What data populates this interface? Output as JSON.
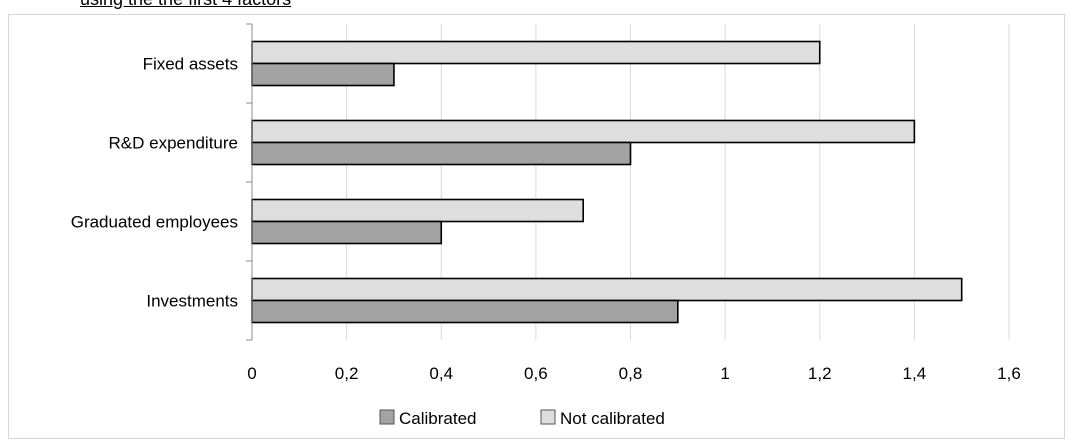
{
  "caption": {
    "text": "using the the first 4 factors"
  },
  "chart_data": {
    "type": "bar",
    "orientation": "horizontal",
    "categories": [
      "Fixed assets",
      "R&D expenditure",
      "Graduated employees",
      "Investments"
    ],
    "series": [
      {
        "name": "Calibrated",
        "values": [
          0.3,
          0.8,
          0.4,
          0.9
        ],
        "color": "#a3a3a3"
      },
      {
        "name": "Not calibrated",
        "values": [
          1.2,
          1.4,
          0.7,
          1.5
        ],
        "color": "#dedede"
      }
    ],
    "xticks": [
      "0",
      "0,2",
      "0,4",
      "0,6",
      "0,8",
      "1",
      "1,2",
      "1,4",
      "1,6"
    ],
    "xlim": [
      0,
      1.6
    ],
    "grid": true,
    "legend": "bottom"
  }
}
